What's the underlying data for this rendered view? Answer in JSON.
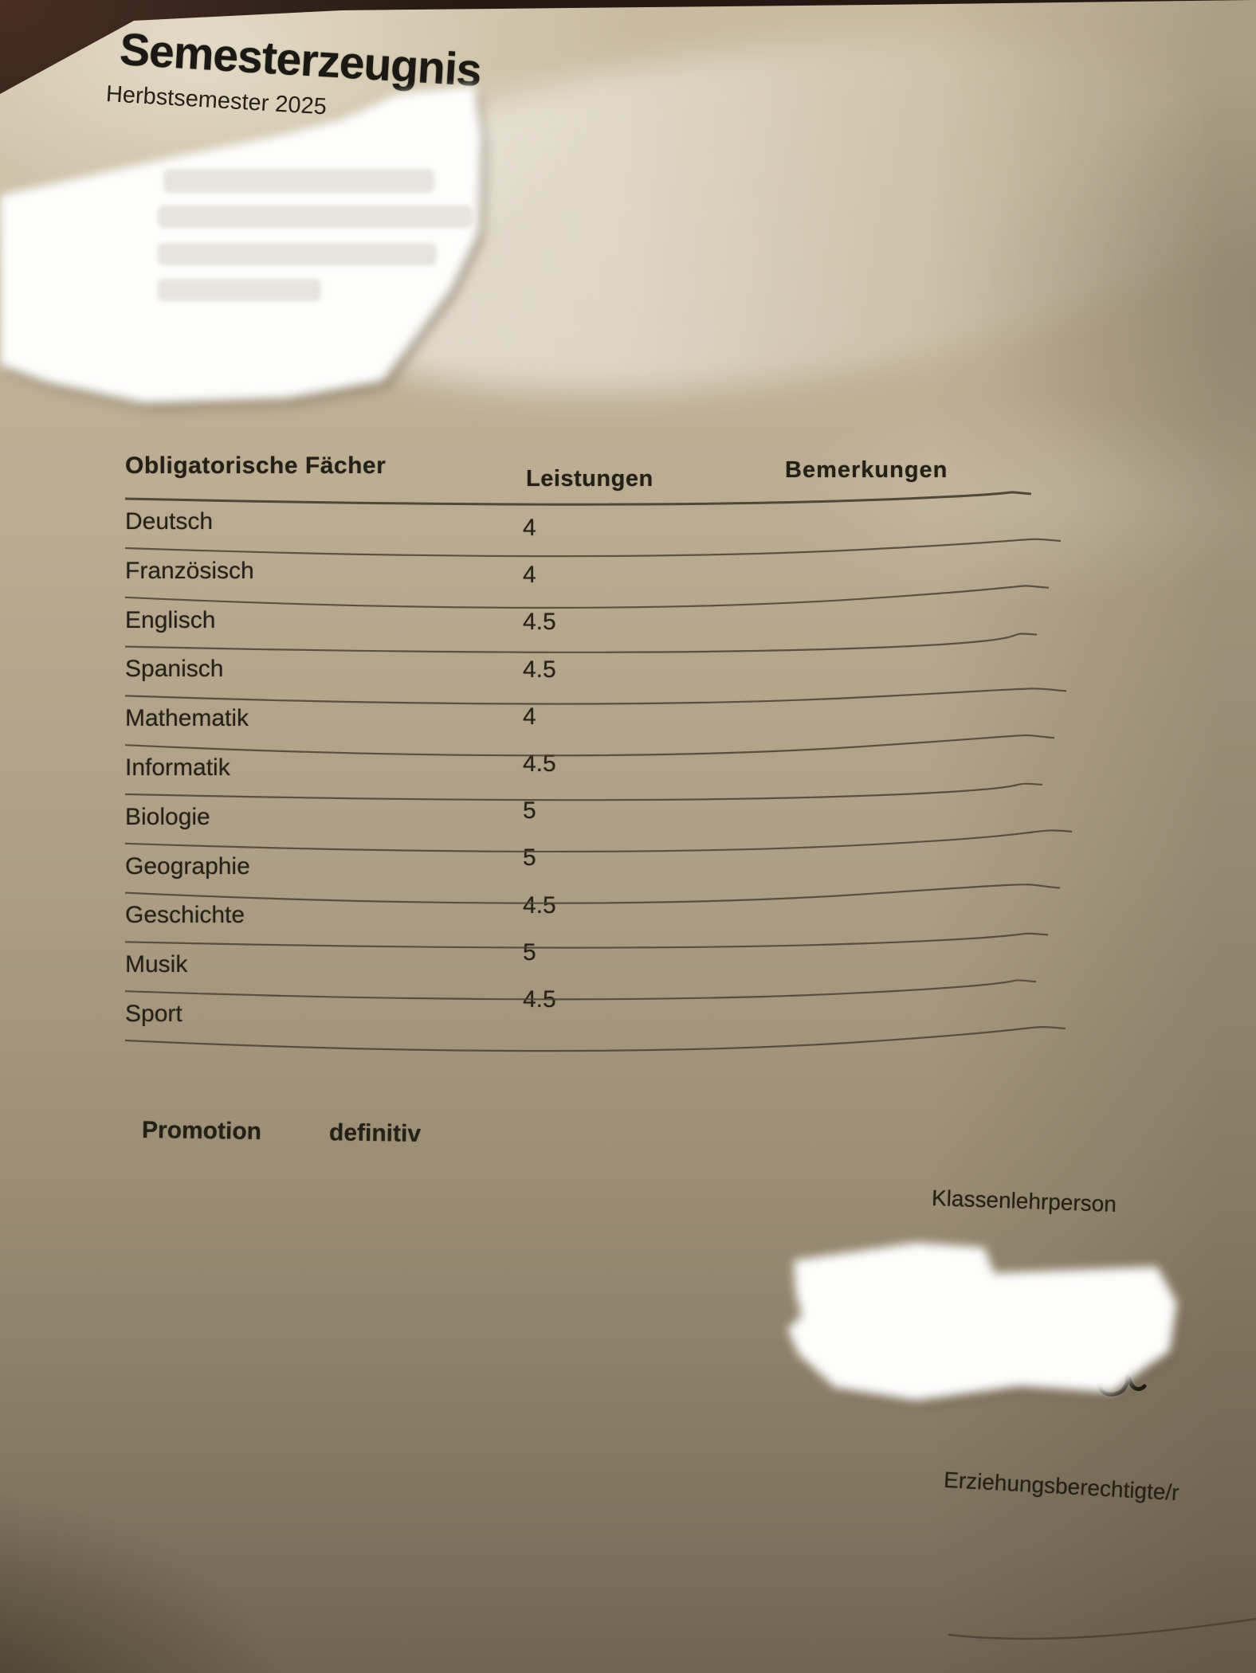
{
  "document": {
    "title": "Semesterzeugnis",
    "subtitle": "Herbstsemester 2025",
    "table": {
      "headers": {
        "subjects": "Obligatorische Fächer",
        "grades": "Leistungen",
        "remarks": "Bemerkungen"
      },
      "rows": [
        {
          "subject": "Deutsch",
          "grade": "4",
          "remarks": ""
        },
        {
          "subject": "Französisch",
          "grade": "4",
          "remarks": ""
        },
        {
          "subject": "Englisch",
          "grade": "4.5",
          "remarks": ""
        },
        {
          "subject": "Spanisch",
          "grade": "4.5",
          "remarks": ""
        },
        {
          "subject": "Mathematik",
          "grade": "4",
          "remarks": ""
        },
        {
          "subject": "Informatik",
          "grade": "4.5",
          "remarks": ""
        },
        {
          "subject": "Biologie",
          "grade": "5",
          "remarks": ""
        },
        {
          "subject": "Geographie",
          "grade": "5",
          "remarks": ""
        },
        {
          "subject": "Geschichte",
          "grade": "4.5",
          "remarks": ""
        },
        {
          "subject": "Musik",
          "grade": "5",
          "remarks": ""
        },
        {
          "subject": "Sport",
          "grade": "4.5",
          "remarks": ""
        }
      ]
    },
    "promotion_label": "Promotion",
    "promotion_value": "definitiv",
    "teacher_signature_label": "Klassenlehrperson",
    "guardian_signature_label": "Erziehungsberechtigte/r",
    "redactions": {
      "student_details": "whited-out",
      "teacher_signature": "whited-out"
    }
  },
  "colors": {
    "paper_light": "#c8bb9f",
    "paper_dark": "#6f6450",
    "ink": "#241f17",
    "table_line": "#4a4233",
    "background": "#30231b",
    "whiteout": "#ffffff"
  }
}
